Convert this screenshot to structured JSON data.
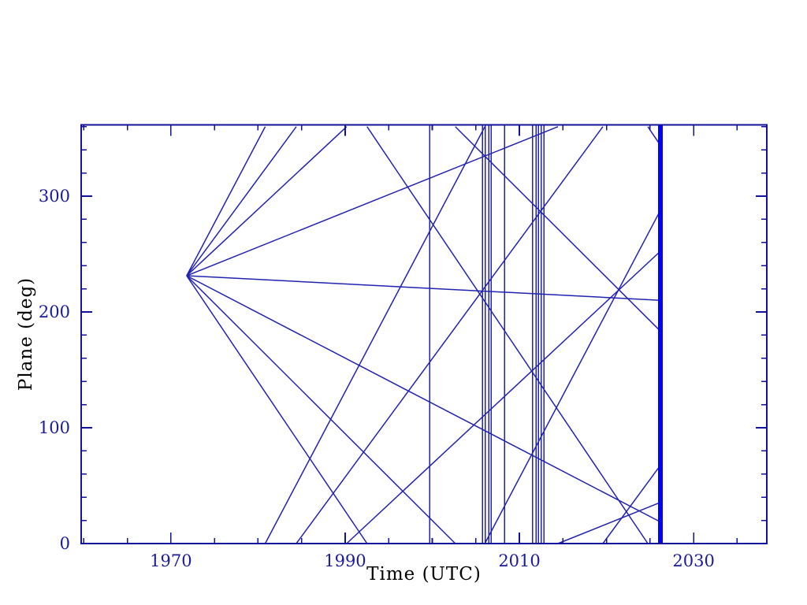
{
  "colors": {
    "background": "#ffffff",
    "axis": "#12129a",
    "text": "#1a1aa0",
    "line": "#2222b0",
    "epoch_line": "#0404f2"
  },
  "chart_data": {
    "type": "line",
    "xlabel": "Time (UTC)",
    "ylabel": "Plane (deg)",
    "x_range": [
      1959.7,
      2038.4
    ],
    "y_range": [
      0,
      361.6
    ],
    "x_major_ticks": [
      {
        "value": 1970,
        "label": "1970"
      },
      {
        "value": 1990,
        "label": "1990"
      },
      {
        "value": 2010,
        "label": "2010"
      },
      {
        "value": 2030,
        "label": "2030"
      }
    ],
    "x_minor_step": 5,
    "x_minor_range": [
      1960,
      2035
    ],
    "y_major_ticks": [
      {
        "value": 0,
        "label": "0"
      },
      {
        "value": 100,
        "label": "100"
      },
      {
        "value": 200,
        "label": "200"
      },
      {
        "value": 300,
        "label": "300"
      }
    ],
    "y_minor_step": 20,
    "y_minor_range": [
      0,
      360
    ],
    "grid": false,
    "legend": null,
    "fan": {
      "origin_year": 1971.81,
      "origin_deg": 231.3,
      "end_year": 2026.2,
      "wrap_deg": 360,
      "rates_deg_per_yr": [
        14.28,
        10.23,
        7.01,
        3.02,
        -0.39,
        -3.91,
        -7.5,
        -11.17
      ]
    },
    "vertical_line_years": [
      1999.7,
      2005.75,
      2006.1,
      2006.5,
      2006.75,
      2008.3,
      2011.5,
      2011.9,
      2012.2,
      2012.5,
      2012.8
    ],
    "epoch_line_year": 2026.2
  }
}
